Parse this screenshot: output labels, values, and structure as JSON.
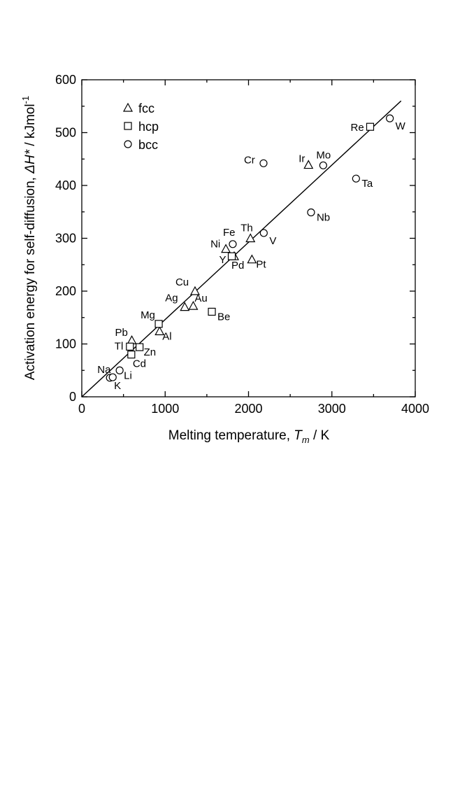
{
  "chart_data": {
    "type": "scatter",
    "xlabel_prefix": "Melting temperature, ",
    "xlabel_var": "T",
    "xlabel_sub": "m",
    "xlabel_suffix": " / K",
    "ylabel_prefix": "Activation energy for self-diffusion, ",
    "ylabel_var": "ΔH*",
    "ylabel_suffix": " / kJmol",
    "ylabel_sup": "-1",
    "xlim": [
      0,
      4000
    ],
    "ylim": [
      0,
      600
    ],
    "xticks": [
      0,
      1000,
      2000,
      3000,
      4000
    ],
    "yticks": [
      0,
      100,
      200,
      300,
      400,
      500,
      600
    ],
    "grid": false,
    "legend_position": "top-left",
    "legend": [
      {
        "label": "fcc",
        "marker": "triangle"
      },
      {
        "label": "hcp",
        "marker": "square"
      },
      {
        "label": "bcc",
        "marker": "circle"
      }
    ],
    "fit_line": {
      "x": [
        0,
        3830
      ],
      "y": [
        0,
        560
      ]
    },
    "series": [
      {
        "name": "fcc",
        "marker": "triangle",
        "points": [
          {
            "label": "Pb",
            "x": 600,
            "y": 107
          },
          {
            "label": "Al",
            "x": 933,
            "y": 124
          },
          {
            "label": "Ag",
            "x": 1235,
            "y": 170
          },
          {
            "label": "Au",
            "x": 1337,
            "y": 172
          },
          {
            "label": "Cu",
            "x": 1358,
            "y": 200
          },
          {
            "label": "Ni",
            "x": 1728,
            "y": 280
          },
          {
            "label": "Pd",
            "x": 1828,
            "y": 266
          },
          {
            "label": "Th",
            "x": 2023,
            "y": 300
          },
          {
            "label": "Pt",
            "x": 2041,
            "y": 260
          },
          {
            "label": "Ir",
            "x": 2719,
            "y": 439
          }
        ]
      },
      {
        "name": "hcp",
        "marker": "square",
        "points": [
          {
            "label": "Tl",
            "x": 577,
            "y": 95
          },
          {
            "label": "Cd",
            "x": 594,
            "y": 80
          },
          {
            "label": "Zn",
            "x": 693,
            "y": 94
          },
          {
            "label": "Mg",
            "x": 923,
            "y": 138
          },
          {
            "label": "Be",
            "x": 1560,
            "y": 161
          },
          {
            "label": "Y",
            "x": 1799,
            "y": 266
          },
          {
            "label": "Re",
            "x": 3459,
            "y": 511
          }
        ]
      },
      {
        "name": "bcc",
        "marker": "circle",
        "points": [
          {
            "label": "K",
            "x": 337,
            "y": 36
          },
          {
            "label": "Na",
            "x": 371,
            "y": 37
          },
          {
            "label": "Li",
            "x": 454,
            "y": 50
          },
          {
            "label": "Fe",
            "x": 1811,
            "y": 289
          },
          {
            "label": "Cr",
            "x": 2180,
            "y": 442
          },
          {
            "label": "V",
            "x": 2183,
            "y": 310
          },
          {
            "label": "Nb",
            "x": 2750,
            "y": 349
          },
          {
            "label": "Mo",
            "x": 2896,
            "y": 438
          },
          {
            "label": "Ta",
            "x": 3290,
            "y": 413
          },
          {
            "label": "W",
            "x": 3695,
            "y": 527
          }
        ]
      }
    ]
  }
}
